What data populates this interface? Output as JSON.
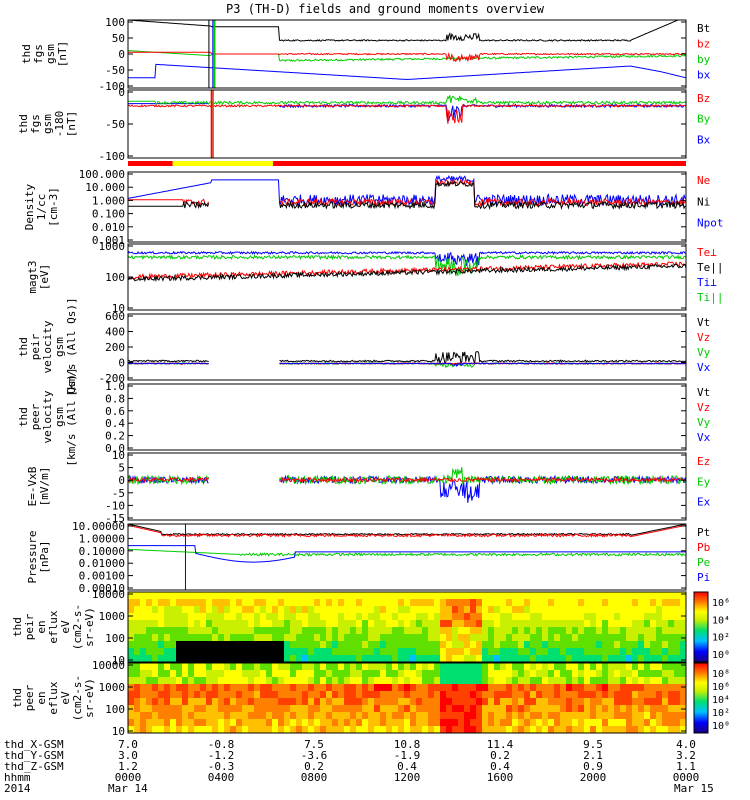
{
  "title": "P3 (TH-D) fields and ground moments overview",
  "chart_data": {
    "type": "line",
    "x_labels": {
      "X": [
        "7.0",
        "-0.8",
        "7.5",
        "10.8",
        "11.4",
        "9.5",
        "4.0"
      ],
      "Y": [
        "3.0",
        "-1.2",
        "-3.6",
        "-1.9",
        "0.2",
        "2.1",
        "3.2"
      ],
      "Z": [
        "1.2",
        "-0.3",
        "0.2",
        "0.4",
        "0.4",
        "0.9",
        "1.1"
      ],
      "hhmm": [
        "0000",
        "0400",
        "0800",
        "1200",
        "1600",
        "2000",
        "0000"
      ]
    },
    "x_row_labels": [
      "thd_X-GSM",
      "thd_Y-GSM",
      "thd_Z-GSM",
      "hhmm",
      "2014"
    ],
    "date_start": "Mar 14",
    "date_end": "Mar 15",
    "panels": [
      {
        "ylabel": [
          "thd",
          "fgs",
          "gsm",
          "[nT]"
        ],
        "yticks": [
          "100",
          "50",
          "0",
          "-50",
          "-100"
        ],
        "ylim": [
          -100,
          100
        ],
        "legend": [
          {
            "name": "Bt",
            "color": "#000000"
          },
          {
            "name": "bz",
            "color": "#ff0000"
          },
          {
            "name": "by",
            "color": "#00cc00"
          },
          {
            "name": "bx",
            "color": "#0000ff"
          }
        ]
      },
      {
        "ylabel": [
          "thd",
          "fgs",
          "gsm",
          "-180",
          "[nT]"
        ],
        "yticks": [
          "0",
          "-50",
          "-100"
        ],
        "ylim": [
          -120,
          30
        ],
        "legend": [
          {
            "name": "Bz",
            "color": "#ff0000"
          },
          {
            "name": "By",
            "color": "#00cc00"
          },
          {
            "name": "Bx",
            "color": "#0000ff"
          }
        ]
      },
      {
        "ylabel": [
          "Density",
          "1/cc",
          "[cm-3]"
        ],
        "yticks": [
          "100.000",
          "10.000",
          "1.000",
          "0.100",
          "0.010",
          "0.001"
        ],
        "log_scale": true,
        "legend": [
          {
            "name": "Ne",
            "color": "#ff0000"
          },
          {
            "name": "Ni",
            "color": "#000000"
          },
          {
            "name": "Npot",
            "color": "#0000ff"
          }
        ]
      },
      {
        "ylabel": [
          "magt3",
          "[eV]"
        ],
        "yticks": [
          "1000",
          "100",
          "10"
        ],
        "log_scale": true,
        "legend": [
          {
            "name": "Te⊥",
            "color": "#ff0000"
          },
          {
            "name": "Te||",
            "color": "#000000"
          },
          {
            "name": "Ti⊥",
            "color": "#0000ff"
          },
          {
            "name": "Ti||",
            "color": "#00cc00"
          }
        ]
      },
      {
        "ylabel": [
          "thd",
          "peir",
          "velocity",
          "gsm",
          "[km/s (All Qs)]"
        ],
        "yticks": [
          "600",
          "400",
          "200",
          "0",
          "-200"
        ],
        "ylim": [
          -200,
          600
        ],
        "legend": [
          {
            "name": "Vt",
            "color": "#000000"
          },
          {
            "name": "Vz",
            "color": "#ff0000"
          },
          {
            "name": "Vy",
            "color": "#00cc00"
          },
          {
            "name": "Vx",
            "color": "#0000ff"
          }
        ]
      },
      {
        "ylabel": [
          "thd",
          "peer",
          "velocity",
          "gsm",
          "[km/s (All Qs)]"
        ],
        "yticks": [
          "1.0",
          "0.8",
          "0.6",
          "0.4",
          "0.2",
          "0.0"
        ],
        "ylim": [
          0,
          1
        ],
        "legend": [
          {
            "name": "Vt",
            "color": "#000000"
          },
          {
            "name": "Vz",
            "color": "#ff0000"
          },
          {
            "name": "Vy",
            "color": "#00cc00"
          },
          {
            "name": "Vx",
            "color": "#0000ff"
          }
        ]
      },
      {
        "ylabel": [
          "E=-VxB",
          "[mV/m]"
        ],
        "yticks": [
          "10",
          "5",
          "0",
          "-5",
          "-10",
          "-15"
        ],
        "ylim": [
          -15,
          10
        ],
        "legend": [
          {
            "name": "Ez",
            "color": "#ff0000"
          },
          {
            "name": "Ey",
            "color": "#00cc00"
          },
          {
            "name": "Ex",
            "color": "#0000ff"
          }
        ]
      },
      {
        "ylabel": [
          "Pressure",
          "[nPa]"
        ],
        "yticks": [
          "10.00000",
          "1.00000",
          "0.10000",
          "0.01000",
          "0.00100",
          "0.00010"
        ],
        "log_scale": true,
        "legend": [
          {
            "name": "Pt",
            "color": "#000000"
          },
          {
            "name": "Pb",
            "color": "#ff0000"
          },
          {
            "name": "Pe",
            "color": "#00cc00"
          },
          {
            "name": "Pi",
            "color": "#0000ff"
          }
        ]
      },
      {
        "ylabel": [
          "thd",
          "peir",
          "en",
          "eflux",
          "eV",
          "(cm2-s-",
          "sr-eV)"
        ],
        "yticks": [
          "10000",
          "1000",
          "100",
          "10"
        ],
        "log_scale": true,
        "colorbar_ticks": [
          "10⁶",
          "10⁴",
          "10²",
          "10⁰"
        ]
      },
      {
        "ylabel": [
          "thd",
          "peer",
          "en",
          "eflux",
          "eV",
          "(cm2-s-",
          "sr-eV)"
        ],
        "yticks": [
          "10000",
          "1000",
          "100",
          "10"
        ],
        "log_scale": true,
        "colorbar_ticks": [
          "10⁸",
          "10⁶",
          "10⁴",
          "10²",
          "10⁰"
        ]
      }
    ]
  }
}
